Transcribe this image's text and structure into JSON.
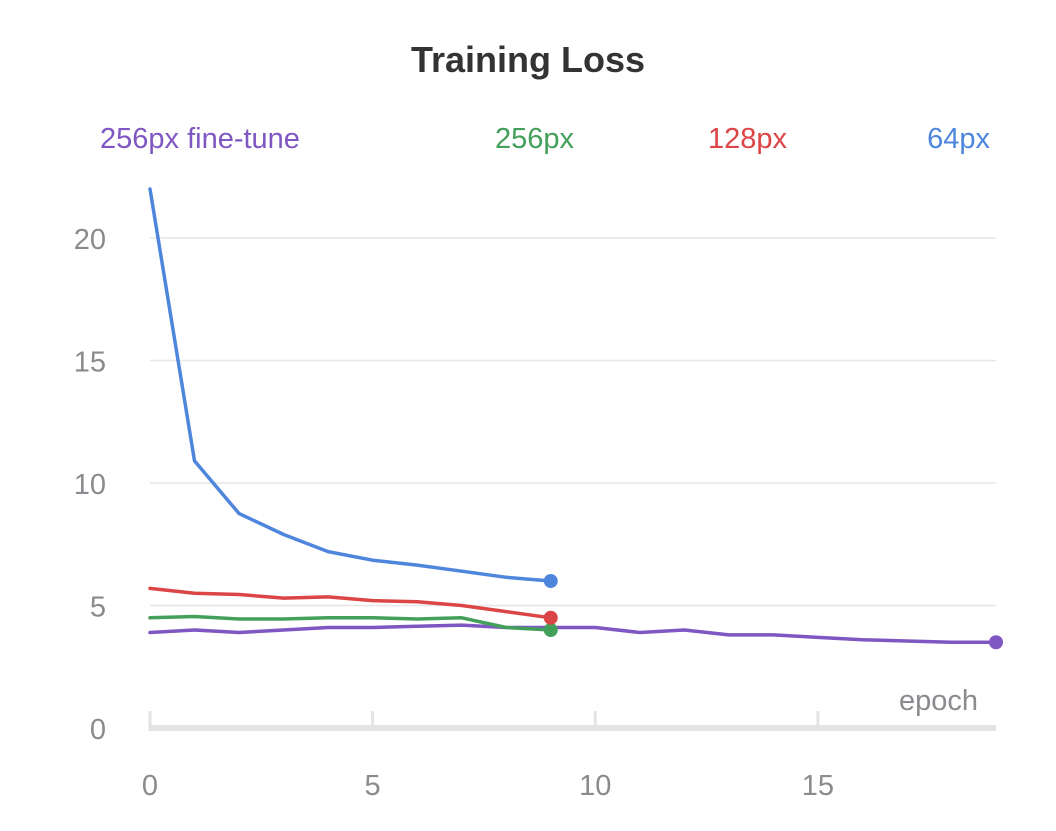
{
  "chart_data": {
    "type": "line",
    "title": "Training Loss",
    "xlabel": "epoch",
    "ylabel": "",
    "xlim": [
      0,
      19
    ],
    "ylim": [
      0,
      22
    ],
    "x_ticks": [
      0,
      5,
      10,
      15
    ],
    "y_ticks": [
      0,
      5,
      10,
      15,
      20
    ],
    "grid": true,
    "legend_position": "top",
    "series": [
      {
        "name": "256px fine-tune",
        "color": "#7e57c2",
        "x": [
          0,
          1,
          2,
          3,
          4,
          5,
          6,
          7,
          8,
          9,
          10,
          11,
          12,
          13,
          14,
          15,
          16,
          17,
          18,
          19
        ],
        "values": [
          3.9,
          4.0,
          3.9,
          4.0,
          4.1,
          4.1,
          4.15,
          4.2,
          4.1,
          4.1,
          4.1,
          3.9,
          4.0,
          3.8,
          3.8,
          3.7,
          3.6,
          3.55,
          3.5,
          3.5
        ]
      },
      {
        "name": "256px",
        "color": "#43a05a",
        "x": [
          0,
          1,
          2,
          3,
          4,
          5,
          6,
          7,
          8,
          9
        ],
        "values": [
          4.5,
          4.55,
          4.45,
          4.45,
          4.5,
          4.5,
          4.45,
          4.5,
          4.1,
          4.0
        ]
      },
      {
        "name": "128px",
        "color": "#db4545",
        "x": [
          0,
          1,
          2,
          3,
          4,
          5,
          6,
          7,
          8,
          9
        ],
        "values": [
          5.7,
          5.5,
          5.45,
          5.3,
          5.35,
          5.2,
          5.15,
          5.0,
          4.75,
          4.5
        ]
      },
      {
        "name": "64px",
        "color": "#4f86dd",
        "x": [
          0,
          1,
          2,
          3,
          4,
          5,
          6,
          7,
          8,
          9
        ],
        "values": [
          22.0,
          10.9,
          8.75,
          7.9,
          7.2,
          6.85,
          6.65,
          6.4,
          6.15,
          6.0
        ]
      }
    ]
  }
}
